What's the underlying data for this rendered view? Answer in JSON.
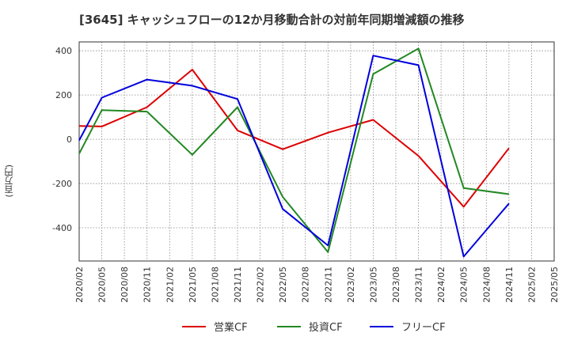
{
  "chart_data": {
    "type": "line",
    "title": "[3645]  キャッシュフローの12か月移動合計の対前年同期増減額の推移",
    "ylabel": "(百万円)",
    "xlabel": "",
    "ylim": [
      -550,
      440
    ],
    "yticks": [
      400,
      200,
      0,
      -200,
      -400
    ],
    "categories": [
      "2020/02",
      "2020/05",
      "2020/08",
      "2020/11",
      "2021/02",
      "2021/05",
      "2021/08",
      "2021/11",
      "2022/02",
      "2022/05",
      "2022/08",
      "2022/11",
      "2023/02",
      "2023/05",
      "2023/08",
      "2023/11",
      "2024/02",
      "2024/05",
      "2024/08",
      "2024/11",
      "2025/02",
      "2025/05"
    ],
    "grid": true,
    "legend_position": "bottom",
    "series": [
      {
        "name": "営業CF",
        "color": "#dd0000",
        "values": [
          60,
          58,
          null,
          145,
          null,
          315,
          null,
          40,
          null,
          -45,
          null,
          30,
          null,
          88,
          null,
          -75,
          null,
          -305,
          null,
          -40,
          null,
          null
        ]
      },
      {
        "name": "投資CF",
        "color": "#228822",
        "values": [
          -65,
          132,
          null,
          125,
          null,
          -70,
          null,
          145,
          null,
          -260,
          null,
          -510,
          null,
          295,
          null,
          410,
          null,
          -220,
          null,
          -248,
          null,
          null
        ]
      },
      {
        "name": "フリーCF",
        "color": "#0000dd",
        "values": [
          -5,
          188,
          null,
          270,
          null,
          242,
          null,
          182,
          null,
          -315,
          null,
          -480,
          null,
          378,
          null,
          335,
          null,
          -530,
          null,
          -290,
          null,
          null
        ]
      }
    ]
  }
}
